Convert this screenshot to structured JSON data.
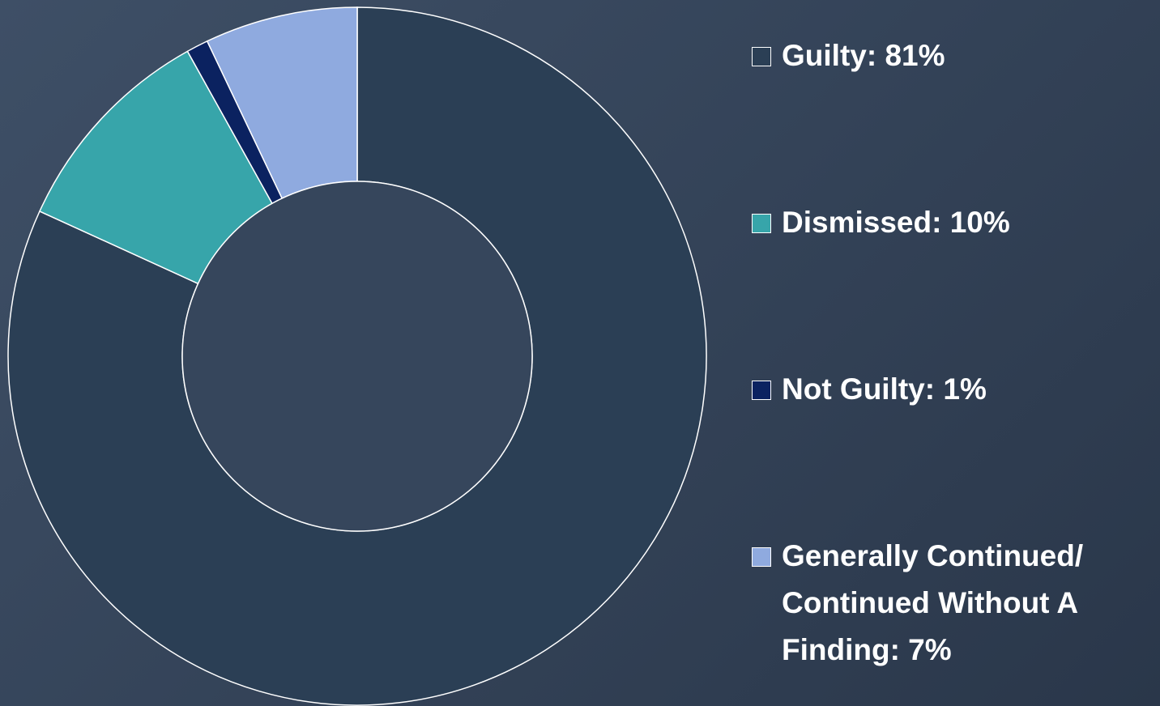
{
  "chart_data": {
    "type": "donut",
    "categories": [
      "Guilty: 81%",
      "Dismissed: 10%",
      "Not Guilty: 1%",
      "Generally Continued/ Continued Without A Finding: 7%"
    ],
    "values": [
      81,
      10,
      1,
      7
    ],
    "colors": [
      "#2b3f55",
      "#37a5aa",
      "#0b2260",
      "#8faadf"
    ]
  }
}
